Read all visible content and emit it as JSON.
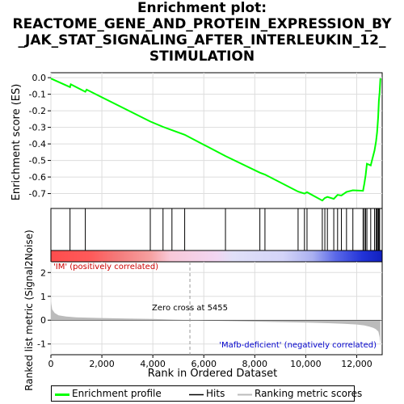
{
  "title_lines": [
    "Enrichment plot:",
    "REACTOME_GENE_AND_PROTEIN_EXPRESSION_BY",
    "_JAK_STAT_SIGNALING_AFTER_INTERLEUKIN_12_",
    "STIMULATION"
  ],
  "chart_data": {
    "type": "line",
    "title": "Enrichment plot: REACTOME_GENE_AND_PROTEIN_EXPRESSION_BY_JAK_STAT_SIGNALING_AFTER_INTERLEUKIN_12_STIMULATION",
    "xlabel": "Rank in Ordered Dataset",
    "ylabel_top": "Enrichment score (ES)",
    "ylabel_bottom": "Ranked list metric (Signal2Noise)",
    "xlim": [
      0,
      13000
    ],
    "x_ticks": [
      0,
      2000,
      4000,
      6000,
      8000,
      10000,
      12000
    ],
    "x_tick_labels": [
      "0",
      "2,000",
      "4,000",
      "6,000",
      "8,000",
      "10,000",
      "12,000"
    ],
    "es_ylim": [
      -0.79,
      0.03
    ],
    "es_ticks": [
      0.0,
      -0.1,
      -0.2,
      -0.3,
      -0.4,
      -0.5,
      -0.6,
      -0.7
    ],
    "es_tick_labels": [
      "0.0",
      "-0.1",
      "-0.2",
      "-0.3",
      "-0.4",
      "-0.5",
      "-0.6",
      "-0.7"
    ],
    "metric_ylim": [
      -1.45,
      2.45
    ],
    "metric_ticks": [
      2,
      1,
      0,
      -1
    ],
    "metric_tick_labels": [
      "2",
      "1",
      "0",
      "-1"
    ],
    "series": [
      {
        "name": "Enrichment profile",
        "color": "#00ff00",
        "x": [
          0,
          750,
          780,
          1350,
          1400,
          3900,
          4400,
          4750,
          5250,
          6850,
          8200,
          8400,
          9700,
          9950,
          10050,
          10650,
          10750,
          10850,
          11100,
          11250,
          11400,
          11600,
          11850,
          12250,
          12300,
          12350,
          12400,
          12550,
          12700,
          12760,
          12800,
          12840,
          12870,
          12900,
          12930
        ],
        "y": [
          -0.005,
          -0.057,
          -0.04,
          -0.085,
          -0.072,
          -0.265,
          -0.297,
          -0.317,
          -0.345,
          -0.473,
          -0.574,
          -0.585,
          -0.688,
          -0.7,
          -0.692,
          -0.742,
          -0.727,
          -0.72,
          -0.732,
          -0.708,
          -0.712,
          -0.69,
          -0.68,
          -0.683,
          -0.64,
          -0.59,
          -0.52,
          -0.53,
          -0.44,
          -0.385,
          -0.33,
          -0.24,
          -0.14,
          -0.09,
          -0.003
        ]
      }
    ],
    "hits": [
      750,
      1350,
      3900,
      4400,
      4750,
      5250,
      6850,
      8200,
      8400,
      9700,
      9950,
      10050,
      10650,
      10750,
      10850,
      11100,
      11250,
      11400,
      11600,
      11850,
      12250,
      12300,
      12350,
      12400,
      12550,
      12700,
      12760,
      12800,
      12840,
      12870,
      12900
    ],
    "metric_curve": {
      "x": [
        0,
        50,
        150,
        300,
        600,
        1000,
        2000,
        3000,
        4000,
        5000,
        5455,
        6000,
        7000,
        8000,
        9000,
        10000,
        11000,
        11500,
        12000,
        12300,
        12500,
        12650,
        12750,
        12850,
        12900,
        12930
      ],
      "y": [
        0.8,
        0.45,
        0.3,
        0.2,
        0.15,
        0.12,
        0.09,
        0.07,
        0.05,
        0.02,
        0.0,
        -0.02,
        -0.04,
        -0.06,
        -0.08,
        -0.1,
        -0.13,
        -0.15,
        -0.18,
        -0.22,
        -0.27,
        -0.32,
        -0.38,
        -0.48,
        -0.7,
        -1.05
      ]
    },
    "zero_cross": 5455,
    "legend": [
      "Enrichment profile",
      "Hits",
      "Ranking metric scores"
    ],
    "legend_position": "bottom"
  },
  "annotations": {
    "positive_label": "'IM' (positively correlated)",
    "negative_label": "'Mafb-deficient' (negatively correlated)",
    "zero_cross_label": "Zero cross at 5455",
    "positive_color": "#cc0000",
    "negative_color": "#0000cc"
  },
  "legend_items": {
    "profile": "Enrichment profile",
    "hits": "Hits",
    "ranking": "Ranking metric scores"
  },
  "colors": {
    "profile": "#00ff00",
    "hits": "#000000",
    "ranking": "#bbbbbb",
    "grid": "#dddddd"
  }
}
